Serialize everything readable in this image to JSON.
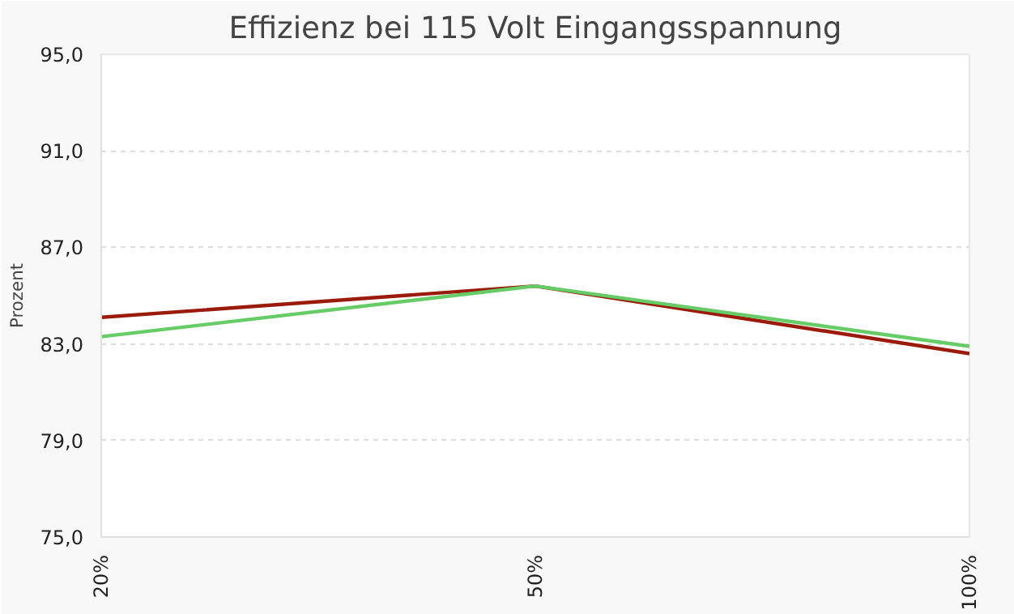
{
  "chart_data": {
    "type": "line",
    "title": "Effizienz bei 115 Volt Eingangsspannung",
    "ylabel": "Prozent",
    "categories": [
      "20%",
      "50%",
      "100%"
    ],
    "series": [
      {
        "color": "#9b1b0a",
        "values": [
          84.1,
          85.4,
          82.6
        ]
      },
      {
        "color": "#66cc66",
        "values": [
          83.3,
          85.4,
          82.9
        ]
      }
    ],
    "ylim": [
      75,
      95
    ],
    "yticks": [
      {
        "value": 75,
        "label": "75,0"
      },
      {
        "value": 79,
        "label": "79,0"
      },
      {
        "value": 83,
        "label": "83,0"
      },
      {
        "value": 87,
        "label": "87,0"
      },
      {
        "value": 91,
        "label": "91,0"
      },
      {
        "value": 95,
        "label": "95,0"
      }
    ],
    "grid": "y",
    "marker": "none",
    "line_style": "solid"
  }
}
